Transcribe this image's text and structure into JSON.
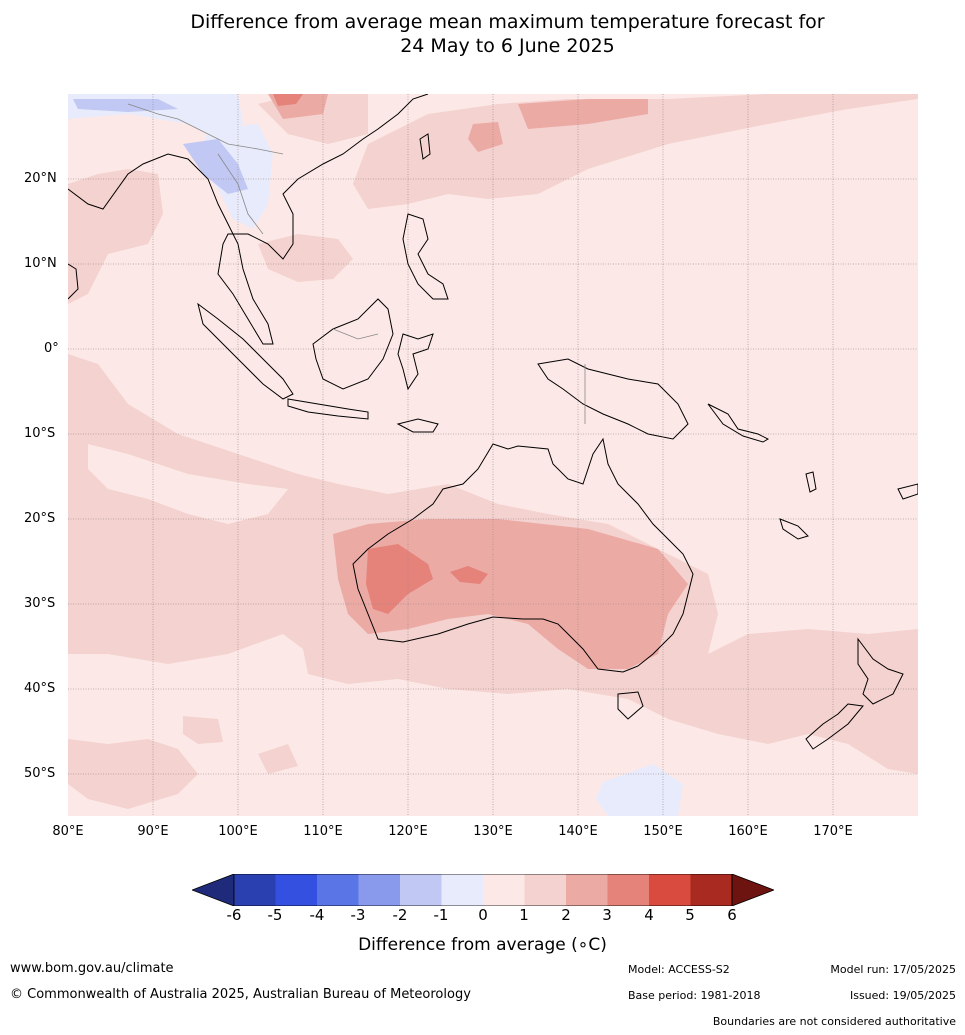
{
  "title_line1": "Difference from average mean maximum temperature forecast for",
  "title_line2": "24 May to 6 June 2025",
  "lat_labels": [
    "20°N",
    "10°N",
    "0°",
    "10°S",
    "20°S",
    "30°S",
    "40°S",
    "50°S"
  ],
  "lon_labels": [
    "80°E",
    "90°E",
    "100°E",
    "110°E",
    "120°E",
    "130°E",
    "140°E",
    "150°E",
    "160°E",
    "170°E"
  ],
  "colorbar": {
    "ticks": [
      "-6",
      "-5",
      "-4",
      "-3",
      "-2",
      "-1",
      "0",
      "1",
      "2",
      "3",
      "4",
      "5",
      "6"
    ],
    "colors": [
      "#1f2a7a",
      "#2a3fb0",
      "#3350e0",
      "#5a75e6",
      "#8999ec",
      "#c0c8f3",
      "#e8ebfb",
      "#fce9e7",
      "#f4d2cf",
      "#ecaaa5",
      "#e5827a",
      "#d94a3f",
      "#a92a20",
      "#6e1410"
    ],
    "label": "Difference from average (∘C)"
  },
  "footer": {
    "website": "www.bom.gov.au/climate",
    "copyright": "© Commonwealth of Australia 2025, Australian Bureau of Meteorology",
    "model": "Model: ACCESS-S2",
    "base_period": "Base period: 1981-2018",
    "model_run": "Model run: 17/05/2025",
    "issued": "Issued: 19/05/2025",
    "disclaimer": "Boundaries are not considered authoritative"
  }
}
